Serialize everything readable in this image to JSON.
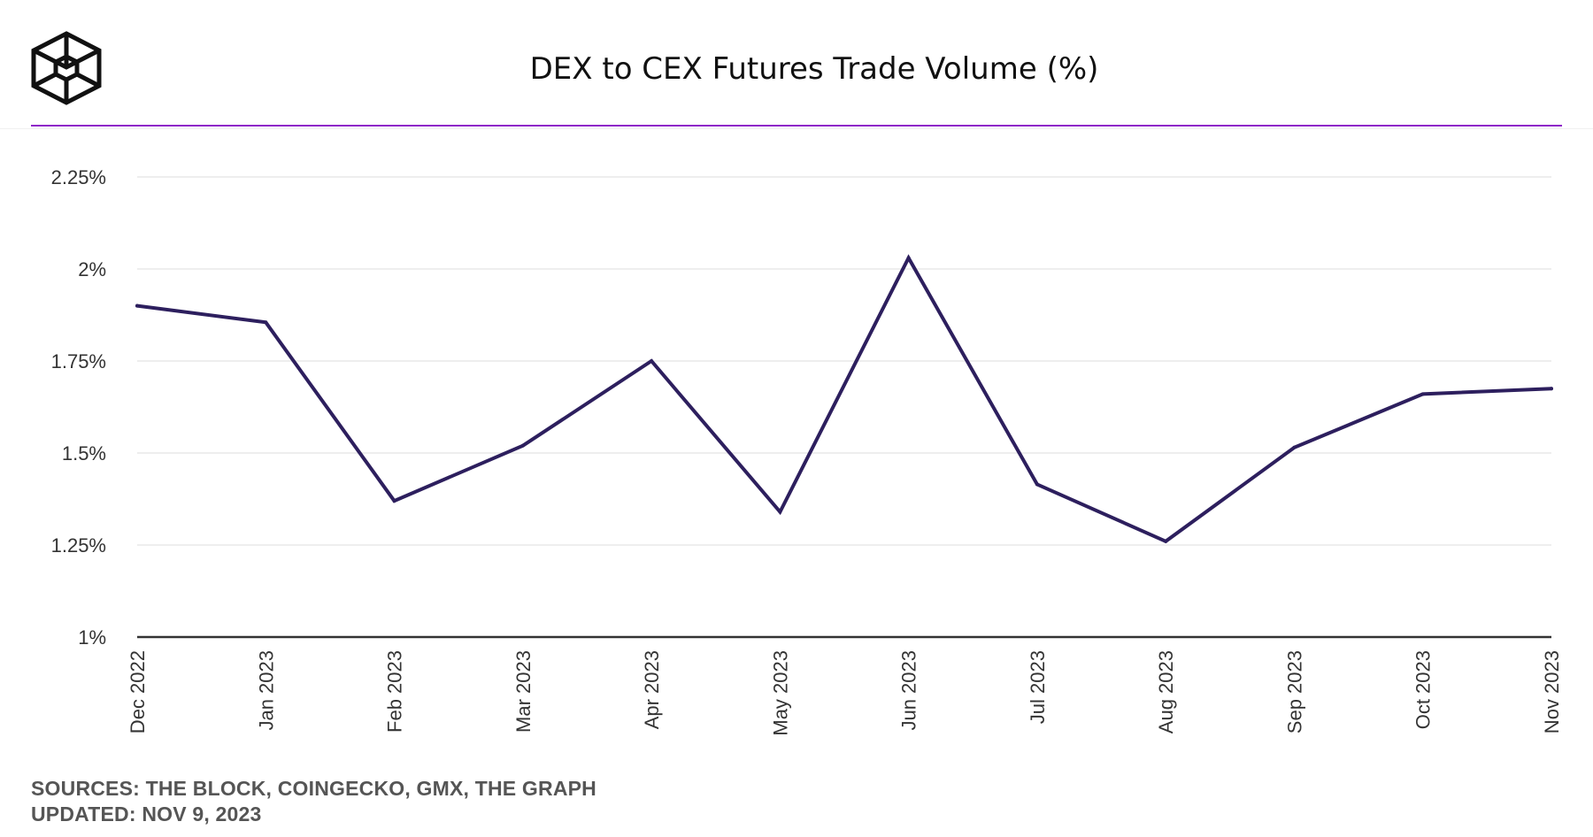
{
  "header": {
    "title": "DEX to CEX Futures Trade Volume (%)",
    "logo_name": "the-block-cube-logo"
  },
  "footer": {
    "sources": "SOURCES: THE BLOCK, COINGECKO, GMX, THE GRAPH",
    "updated": "UPDATED: NOV 9, 2023"
  },
  "colors": {
    "line": "#2d1f5e",
    "accent_rule": "#8e24c8",
    "grid": "#e8e8e8",
    "axis": "#333333"
  },
  "chart_data": {
    "type": "line",
    "title": "DEX to CEX Futures Trade Volume (%)",
    "xlabel": "",
    "ylabel": "",
    "categories": [
      "Dec 2022",
      "Jan 2023",
      "Feb 2023",
      "Mar 2023",
      "Apr 2023",
      "May 2023",
      "Jun 2023",
      "Jul 2023",
      "Aug 2023",
      "Sep 2023",
      "Oct 2023",
      "Nov 2023"
    ],
    "series": [
      {
        "name": "DEX to CEX Futures Trade Volume (%)",
        "values": [
          1.9,
          1.855,
          1.37,
          1.52,
          1.75,
          1.34,
          2.03,
          1.415,
          1.26,
          1.515,
          1.66,
          1.675
        ]
      }
    ],
    "ylim": [
      1.0,
      2.25
    ],
    "yticks": [
      1.0,
      1.25,
      1.5,
      1.75,
      2.0,
      2.25
    ],
    "ytick_labels": [
      "1%",
      "1.25%",
      "1.5%",
      "1.75%",
      "2%",
      "2.25%"
    ],
    "grid": true,
    "legend": "none"
  }
}
